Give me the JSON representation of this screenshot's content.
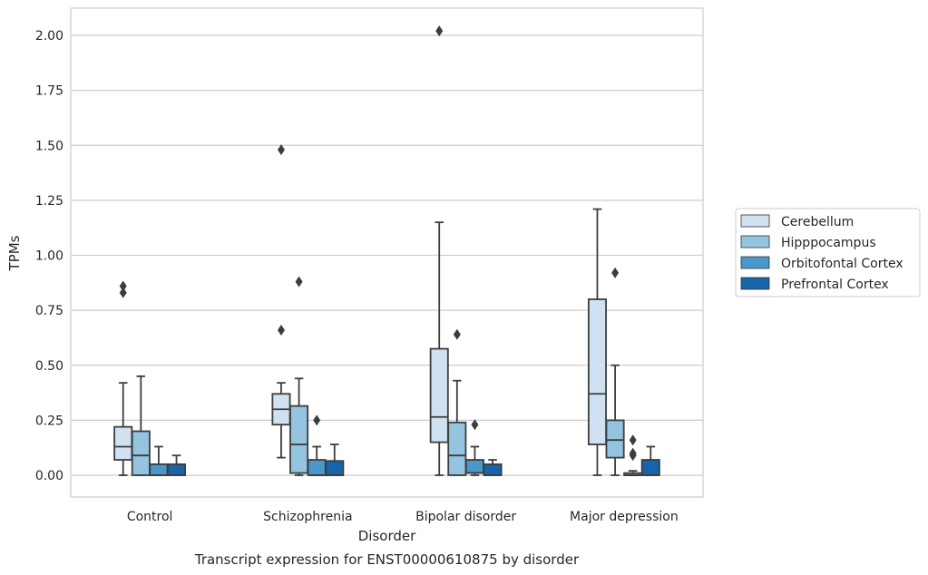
{
  "chart_data": {
    "type": "box",
    "caption": "Transcript expression for ENST00000610875 by disorder",
    "xlabel": "Disorder",
    "ylabel": "TPMs",
    "ylim": [
      -0.1,
      2.12
    ],
    "yticks": [
      "0.00",
      "0.25",
      "0.50",
      "0.75",
      "1.00",
      "1.25",
      "1.50",
      "1.75",
      "2.00"
    ],
    "ytick_values": [
      0,
      0.25,
      0.5,
      0.75,
      1.0,
      1.25,
      1.5,
      1.75,
      2.0
    ],
    "grid": "horizontal",
    "legend_position": "right",
    "categories": [
      "Control",
      "Schizophrenia",
      "Bipolar disorder",
      "Major depression"
    ],
    "series": [
      {
        "name": "Cerebellum",
        "color": "#d0e1f2",
        "boxes": [
          {
            "whisker_low": 0.0,
            "q1": 0.07,
            "median": 0.13,
            "q3": 0.22,
            "whisker_high": 0.42,
            "outliers": [
              0.83,
              0.86
            ]
          },
          {
            "whisker_low": 0.08,
            "q1": 0.23,
            "median": 0.3,
            "q3": 0.37,
            "whisker_high": 0.42,
            "outliers": [
              0.66,
              1.48
            ]
          },
          {
            "whisker_low": 0.0,
            "q1": 0.15,
            "median": 0.265,
            "q3": 0.575,
            "whisker_high": 1.15,
            "outliers": [
              2.02
            ]
          },
          {
            "whisker_low": 0.0,
            "q1": 0.14,
            "median": 0.37,
            "q3": 0.8,
            "whisker_high": 1.21,
            "outliers": []
          }
        ]
      },
      {
        "name": "Hipppocampus",
        "color": "#94c4df",
        "boxes": [
          {
            "whisker_low": 0.0,
            "q1": 0.0,
            "median": 0.09,
            "q3": 0.2,
            "whisker_high": 0.45,
            "outliers": []
          },
          {
            "whisker_low": 0.0,
            "q1": 0.01,
            "median": 0.14,
            "q3": 0.315,
            "whisker_high": 0.44,
            "outliers": [
              0.88
            ]
          },
          {
            "whisker_low": 0.0,
            "q1": 0.0,
            "median": 0.09,
            "q3": 0.24,
            "whisker_high": 0.43,
            "outliers": [
              0.64
            ]
          },
          {
            "whisker_low": 0.0,
            "q1": 0.08,
            "median": 0.16,
            "q3": 0.25,
            "whisker_high": 0.5,
            "outliers": [
              0.92
            ]
          }
        ]
      },
      {
        "name": "Orbitofontal Cortex",
        "color": "#4a98c9",
        "boxes": [
          {
            "whisker_low": 0.0,
            "q1": 0.0,
            "median": 0.0,
            "q3": 0.05,
            "whisker_high": 0.13,
            "outliers": []
          },
          {
            "whisker_low": 0.0,
            "q1": 0.0,
            "median": 0.0,
            "q3": 0.07,
            "whisker_high": 0.13,
            "outliers": [
              0.25
            ]
          },
          {
            "whisker_low": 0.0,
            "q1": 0.01,
            "median": 0.01,
            "q3": 0.07,
            "whisker_high": 0.13,
            "outliers": [
              0.23
            ]
          },
          {
            "whisker_low": 0.0,
            "q1": 0.0,
            "median": 0.0,
            "q3": 0.01,
            "whisker_high": 0.02,
            "outliers": [
              0.09,
              0.1,
              0.16
            ]
          }
        ]
      },
      {
        "name": "Prefrontal Cortex",
        "color": "#1764ab",
        "boxes": [
          {
            "whisker_low": 0.0,
            "q1": 0.0,
            "median": 0.0,
            "q3": 0.05,
            "whisker_high": 0.09,
            "outliers": []
          },
          {
            "whisker_low": 0.0,
            "q1": 0.0,
            "median": 0.0,
            "q3": 0.065,
            "whisker_high": 0.14,
            "outliers": []
          },
          {
            "whisker_low": 0.0,
            "q1": 0.0,
            "median": 0.0,
            "q3": 0.05,
            "whisker_high": 0.07,
            "outliers": []
          },
          {
            "whisker_low": 0.0,
            "q1": 0.0,
            "median": 0.0,
            "q3": 0.07,
            "whisker_high": 0.13,
            "outliers": []
          }
        ]
      }
    ]
  }
}
